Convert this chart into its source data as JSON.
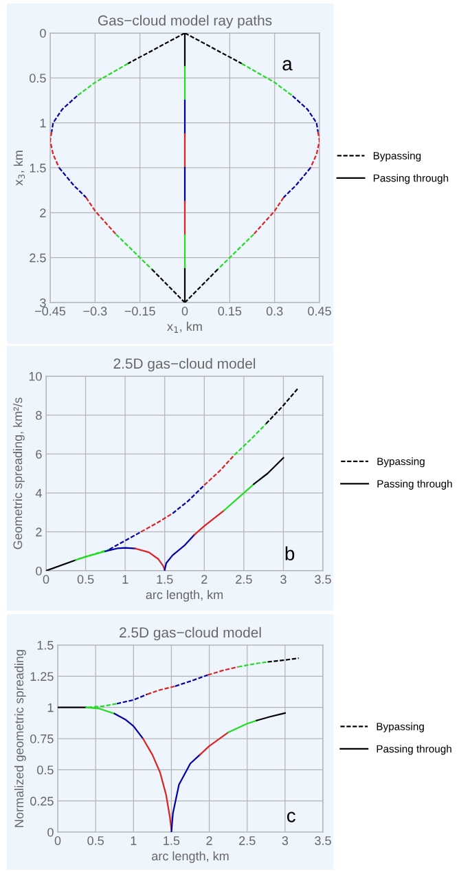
{
  "chart_data": [
    {
      "type": "line",
      "title": "Gas−cloud model ray paths",
      "xlabel": "x$_{1}$, km",
      "ylabel": "x$_{3}$, km",
      "xlim": [
        -0.45,
        0.45
      ],
      "ylim": [
        3,
        0
      ],
      "xticks": [
        {
          "value": -0.45,
          "label": "−0.45"
        },
        {
          "value": -0.3,
          "label": "−0.3"
        },
        {
          "value": -0.15,
          "label": "−0.15"
        },
        0,
        0.15,
        0.3,
        0.45
      ],
      "yticks": [
        0,
        0.5,
        1,
        1.5,
        2,
        2.5,
        3
      ],
      "grid": true,
      "legend": "right",
      "annotations": [
        "a"
      ],
      "series": [
        {
          "name": "Bypassing",
          "color": "#000000",
          "line_style": "dashed",
          "x": [
            0,
            0.19
          ],
          "values": [
            0,
            0.34
          ]
        },
        {
          "color": "#22dd22",
          "line_style": "dashed",
          "x": [
            0.19,
            0.3,
            0.36
          ],
          "values": [
            0.34,
            0.55,
            0.7
          ]
        },
        {
          "color": "#0000aa",
          "line_style": "dashed",
          "x": [
            0.36,
            0.41,
            0.44,
            0.445
          ],
          "values": [
            0.7,
            0.85,
            1.0,
            1.1
          ]
        },
        {
          "color": "#dd2222",
          "line_style": "dashed",
          "x": [
            0.445,
            0.45,
            0.44,
            0.42
          ],
          "values": [
            1.1,
            1.2,
            1.35,
            1.5
          ]
        },
        {
          "color": "#0000aa",
          "line_style": "dashed",
          "x": [
            0.42,
            0.37,
            0.33
          ],
          "values": [
            1.5,
            1.7,
            1.83
          ]
        },
        {
          "color": "#dd2222",
          "line_style": "dashed",
          "x": [
            0.33,
            0.3,
            0.23
          ],
          "values": [
            1.83,
            1.98,
            2.24
          ]
        },
        {
          "color": "#22dd22",
          "line_style": "dashed",
          "x": [
            0.23,
            0.15,
            0.11
          ],
          "values": [
            2.24,
            2.5,
            2.63
          ]
        },
        {
          "color": "#000000",
          "line_style": "dashed",
          "x": [
            0.11,
            0
          ],
          "values": [
            2.63,
            3
          ]
        },
        {
          "color": "#000000",
          "line_style": "dashed",
          "x": [
            0,
            -0.19
          ],
          "values": [
            0,
            0.34
          ]
        },
        {
          "color": "#22dd22",
          "line_style": "dashed",
          "x": [
            -0.19,
            -0.3,
            -0.36
          ],
          "values": [
            0.34,
            0.55,
            0.7
          ]
        },
        {
          "color": "#0000aa",
          "line_style": "dashed",
          "x": [
            -0.36,
            -0.41,
            -0.44,
            -0.445
          ],
          "values": [
            0.7,
            0.85,
            1.0,
            1.1
          ]
        },
        {
          "color": "#dd2222",
          "line_style": "dashed",
          "x": [
            -0.445,
            -0.45,
            -0.44,
            -0.42
          ],
          "values": [
            1.1,
            1.2,
            1.35,
            1.5
          ]
        },
        {
          "color": "#0000aa",
          "line_style": "dashed",
          "x": [
            -0.42,
            -0.37,
            -0.33
          ],
          "values": [
            1.5,
            1.7,
            1.83
          ]
        },
        {
          "color": "#dd2222",
          "line_style": "dashed",
          "x": [
            -0.33,
            -0.3,
            -0.23
          ],
          "values": [
            1.83,
            1.98,
            2.24
          ]
        },
        {
          "color": "#22dd22",
          "line_style": "dashed",
          "x": [
            -0.23,
            -0.15,
            -0.11
          ],
          "values": [
            2.24,
            2.5,
            2.63
          ]
        },
        {
          "color": "#000000",
          "line_style": "dashed",
          "x": [
            -0.11,
            0
          ],
          "values": [
            2.63,
            3
          ]
        },
        {
          "name": "Passing through",
          "color": "#000000",
          "line_style": "solid",
          "x": [
            0,
            0
          ],
          "values": [
            0,
            0.375
          ]
        },
        {
          "color": "#22dd22",
          "line_style": "solid",
          "x": [
            0,
            0
          ],
          "values": [
            0.375,
            0.75
          ]
        },
        {
          "color": "#0000aa",
          "line_style": "solid",
          "x": [
            0,
            0
          ],
          "values": [
            0.75,
            1.125
          ]
        },
        {
          "color": "#dd2222",
          "line_style": "solid",
          "x": [
            0,
            0
          ],
          "values": [
            1.125,
            1.5
          ]
        },
        {
          "color": "#0000aa",
          "line_style": "solid",
          "x": [
            0,
            0
          ],
          "values": [
            1.5,
            1.875
          ]
        },
        {
          "color": "#dd2222",
          "line_style": "solid",
          "x": [
            0,
            0
          ],
          "values": [
            1.875,
            2.25
          ]
        },
        {
          "color": "#22dd22",
          "line_style": "solid",
          "x": [
            0,
            0
          ],
          "values": [
            2.25,
            2.625
          ]
        },
        {
          "color": "#000000",
          "line_style": "solid",
          "x": [
            0,
            0
          ],
          "values": [
            2.625,
            3
          ]
        }
      ]
    },
    {
      "type": "line",
      "title": "2.5D gas−cloud model",
      "xlabel": "arc length, km",
      "ylabel": "Geometric spreading, km²/s",
      "xlim": [
        0,
        3.5
      ],
      "ylim": [
        0,
        10
      ],
      "xticks": [
        0,
        0.5,
        1,
        1.5,
        2,
        2.5,
        3,
        3.5
      ],
      "yticks": [
        0,
        2,
        4,
        6,
        8,
        10
      ],
      "grid": true,
      "legend": "right",
      "annotations": [
        "b"
      ],
      "series": [
        {
          "color": "#22dd22",
          "line_style": "dashed",
          "x": [
            0.4,
            0.6,
            0.8
          ],
          "values": [
            0.6,
            0.85,
            1.1
          ]
        },
        {
          "color": "#0000aa",
          "line_style": "dashed",
          "x": [
            0.8,
            1.0,
            1.2
          ],
          "values": [
            1.1,
            1.55,
            2.0
          ]
        },
        {
          "color": "#dd2222",
          "line_style": "dashed",
          "x": [
            1.2,
            1.4,
            1.6
          ],
          "values": [
            2.0,
            2.45,
            2.95
          ]
        },
        {
          "color": "#0000aa",
          "line_style": "dashed",
          "x": [
            1.6,
            1.8,
            2.0
          ],
          "values": [
            2.95,
            3.6,
            4.4
          ]
        },
        {
          "color": "#dd2222",
          "line_style": "dashed",
          "x": [
            2.0,
            2.2,
            2.38
          ],
          "values": [
            4.4,
            5.15,
            5.95
          ]
        },
        {
          "color": "#22dd22",
          "line_style": "dashed",
          "x": [
            2.38,
            2.6,
            2.78
          ],
          "values": [
            5.95,
            6.8,
            7.55
          ]
        },
        {
          "name": "Bypassing",
          "color": "#000000",
          "line_style": "dashed",
          "x": [
            2.78,
            3.0,
            3.18
          ],
          "values": [
            7.55,
            8.5,
            9.35
          ]
        },
        {
          "name": "Passing through",
          "color": "#000000",
          "line_style": "solid",
          "x": [
            0,
            0.375
          ],
          "values": [
            0,
            0.55
          ]
        },
        {
          "color": "#22dd22",
          "line_style": "solid",
          "x": [
            0.375,
            0.5,
            0.75
          ],
          "values": [
            0.55,
            0.72,
            1.0
          ]
        },
        {
          "color": "#0000aa",
          "line_style": "solid",
          "x": [
            0.75,
            0.9,
            1.0,
            1.125
          ],
          "values": [
            1.0,
            1.15,
            1.18,
            1.15
          ]
        },
        {
          "color": "#dd2222",
          "line_style": "solid",
          "x": [
            1.125,
            1.3,
            1.42,
            1.48,
            1.5
          ],
          "values": [
            1.15,
            0.95,
            0.6,
            0.25,
            0.05
          ]
        },
        {
          "color": "#0000aa",
          "line_style": "solid",
          "x": [
            1.5,
            1.52,
            1.6,
            1.75,
            1.875
          ],
          "values": [
            0.05,
            0.4,
            0.8,
            1.3,
            1.85
          ]
        },
        {
          "color": "#dd2222",
          "line_style": "solid",
          "x": [
            1.875,
            2.0,
            2.25
          ],
          "values": [
            1.85,
            2.3,
            3.1
          ]
        },
        {
          "color": "#22dd22",
          "line_style": "solid",
          "x": [
            2.25,
            2.5,
            2.625
          ],
          "values": [
            3.1,
            4.0,
            4.45
          ]
        },
        {
          "color": "#000000",
          "line_style": "solid",
          "x": [
            2.625,
            2.8,
            3.0
          ],
          "values": [
            4.45,
            5.0,
            5.8
          ]
        }
      ]
    },
    {
      "type": "line",
      "title": "2.5D gas−cloud model",
      "xlabel": "arc length, km",
      "ylabel": "Normalized geometric spreading",
      "xlim": [
        0,
        3.5
      ],
      "ylim": [
        0,
        1.5
      ],
      "xticks": [
        0,
        0.5,
        1,
        1.5,
        2,
        2.5,
        3,
        3.5
      ],
      "yticks": [
        0,
        0.25,
        0.5,
        0.75,
        1,
        1.25,
        1.5
      ],
      "grid": true,
      "legend": "right",
      "annotations": [
        "c"
      ],
      "series": [
        {
          "color": "#22dd22",
          "line_style": "dashed",
          "x": [
            0.4,
            0.6,
            0.78
          ],
          "values": [
            1.0,
            1.01,
            1.03
          ]
        },
        {
          "color": "#0000aa",
          "line_style": "dashed",
          "x": [
            0.78,
            1.0,
            1.18
          ],
          "values": [
            1.03,
            1.06,
            1.105
          ]
        },
        {
          "color": "#dd2222",
          "line_style": "dashed",
          "x": [
            1.18,
            1.35,
            1.55
          ],
          "values": [
            1.105,
            1.14,
            1.17
          ]
        },
        {
          "color": "#0000aa",
          "line_style": "dashed",
          "x": [
            1.55,
            1.75,
            1.98
          ],
          "values": [
            1.17,
            1.21,
            1.26
          ]
        },
        {
          "color": "#dd2222",
          "line_style": "dashed",
          "x": [
            1.98,
            2.2,
            2.38
          ],
          "values": [
            1.26,
            1.3,
            1.325
          ]
        },
        {
          "color": "#22dd22",
          "line_style": "dashed",
          "x": [
            2.38,
            2.6,
            2.77
          ],
          "values": [
            1.325,
            1.35,
            1.365
          ]
        },
        {
          "name": "Bypassing",
          "color": "#000000",
          "line_style": "dashed",
          "x": [
            2.77,
            3.0,
            3.18
          ],
          "values": [
            1.365,
            1.38,
            1.395
          ]
        },
        {
          "name": "Passing through",
          "color": "#000000",
          "line_style": "solid",
          "x": [
            0,
            0.375
          ],
          "values": [
            1,
            1.0
          ]
        },
        {
          "color": "#22dd22",
          "line_style": "solid",
          "x": [
            0.375,
            0.55,
            0.75
          ],
          "values": [
            1.0,
            0.99,
            0.95
          ]
        },
        {
          "color": "#0000aa",
          "line_style": "solid",
          "x": [
            0.75,
            0.9,
            1.0,
            1.125
          ],
          "values": [
            0.95,
            0.9,
            0.85,
            0.75
          ]
        },
        {
          "color": "#dd2222",
          "line_style": "solid",
          "x": [
            1.125,
            1.25,
            1.35,
            1.43,
            1.48,
            1.5
          ],
          "values": [
            0.75,
            0.62,
            0.48,
            0.3,
            0.12,
            0.02
          ]
        },
        {
          "color": "#0000aa",
          "line_style": "solid",
          "x": [
            1.5,
            1.52,
            1.6,
            1.75,
            1.875
          ],
          "values": [
            0.0,
            0.15,
            0.38,
            0.55,
            0.62
          ]
        },
        {
          "color": "#dd2222",
          "line_style": "solid",
          "x": [
            1.875,
            2.0,
            2.25
          ],
          "values": [
            0.62,
            0.69,
            0.8
          ]
        },
        {
          "color": "#22dd22",
          "line_style": "solid",
          "x": [
            2.25,
            2.5,
            2.625
          ],
          "values": [
            0.8,
            0.87,
            0.895
          ]
        },
        {
          "color": "#000000",
          "line_style": "solid",
          "x": [
            2.625,
            2.8,
            3.0
          ],
          "values": [
            0.895,
            0.925,
            0.955
          ]
        }
      ]
    }
  ]
}
